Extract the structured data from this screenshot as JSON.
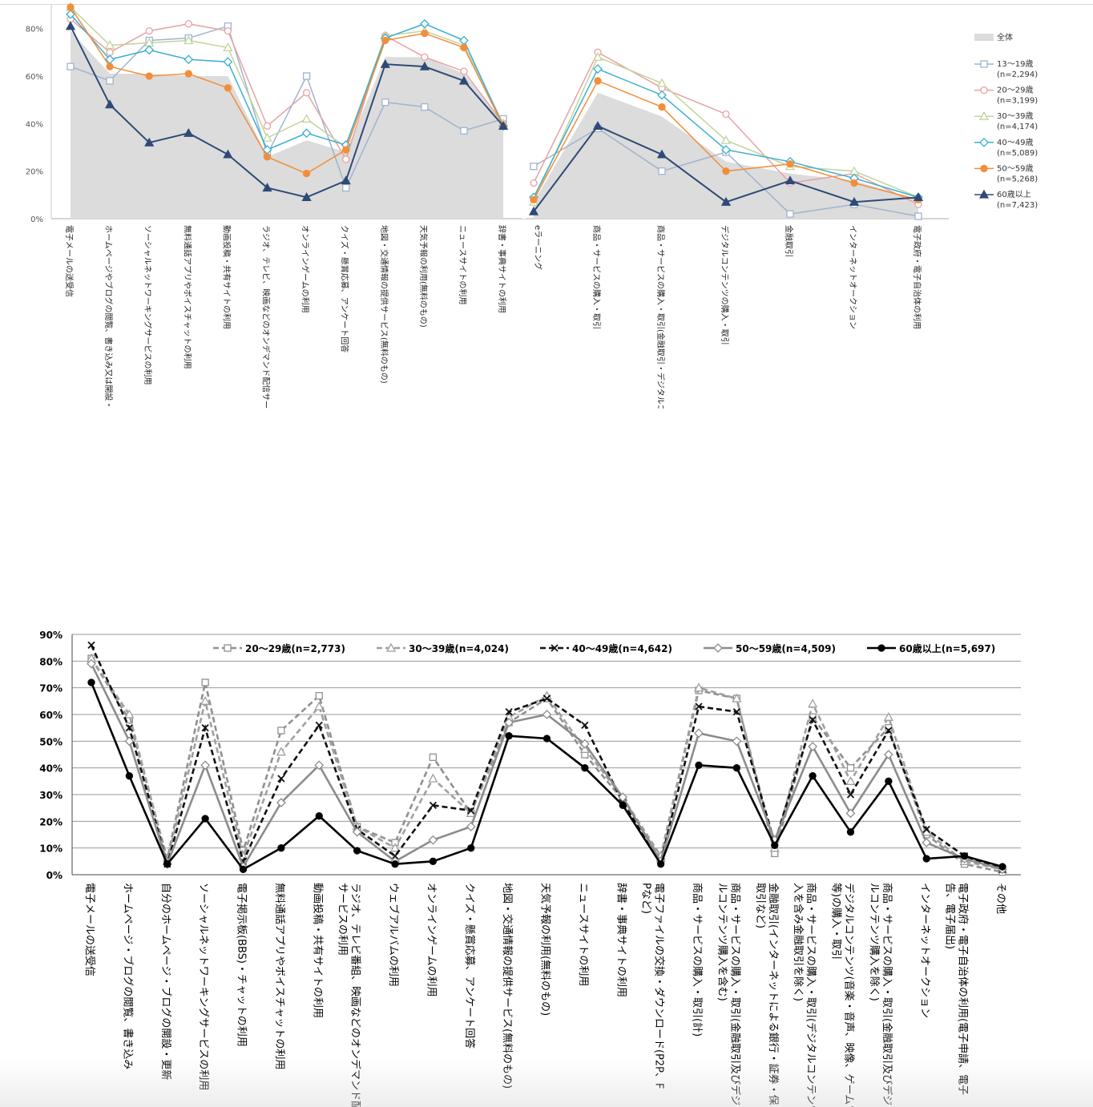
{
  "chart_data": [
    {
      "type": "line",
      "title": "",
      "xlabel": "",
      "ylabel": "",
      "ylim": [
        0,
        90
      ],
      "yticks": [
        "0%",
        "20%",
        "40%",
        "60%",
        "80%"
      ],
      "grid": false,
      "legend_position": "right",
      "categories": [
        "電子メールの送受信",
        "ホームページやブログの閲覧、書き込み又は開設・更新",
        "ソーシャルネットワーキングサービスの利用",
        "無料通話アプリやボイスチャットの利用",
        "動画投稿・共有サイトの利用",
        "ラジオ、テレビ、映画などのオンデマンド配信サービスの利用",
        "オンラインゲームの利用",
        "クイズ・懸賞応募、アンケート回答",
        "地図・交通情報の提供サービス(無料のもの)",
        "天気予報の利用(無料のもの)",
        "ニュースサイトの利用",
        "辞書・事典サイトの利用",
        "eラーニング",
        "商品・サービスの購入・取引",
        "商品・サービスの購入・取引(金融取引・デジタルコンテンツ購入を除く)",
        "デジタルコンテンツの購入・取引",
        "金融取引",
        "インターネットオークション",
        "電子政府・電子自治体の利用"
      ],
      "area": {
        "name": "全体",
        "color": "#dcdcdc",
        "values": [
          79,
          61,
          61,
          60,
          60,
          26,
          33,
          28,
          68,
          68,
          61,
          41,
          7,
          53,
          43,
          24,
          19,
          16,
          8
        ]
      },
      "series": [
        {
          "name": "13〜19歳",
          "n": "(n=2,294)",
          "color": "#9fb3cf",
          "marker": "square",
          "values": [
            64,
            58,
            75,
            76,
            81,
            27,
            60,
            13,
            49,
            47,
            37,
            42,
            22,
            38,
            20,
            28,
            2,
            6,
            1
          ]
        },
        {
          "name": "20〜29歳",
          "n": "(n=3,199)",
          "color": "#e7a2a2",
          "marker": "circle",
          "values": [
            84,
            70,
            79,
            82,
            79,
            39,
            53,
            25,
            77,
            68,
            62,
            40,
            15,
            70,
            55,
            44,
            15,
            19,
            6
          ]
        },
        {
          "name": "30〜39歳",
          "n": "(n=4,174)",
          "color": "#c2d49c",
          "marker": "triangle",
          "values": [
            89,
            73,
            74,
            75,
            72,
            34,
            42,
            30,
            77,
            79,
            73,
            40,
            7,
            68,
            57,
            33,
            22,
            20,
            9
          ]
        },
        {
          "name": "40〜49歳",
          "n": "(n=5,089)",
          "color": "#3aaed2",
          "marker": "diamond",
          "values": [
            86,
            67,
            71,
            67,
            66,
            29,
            36,
            31,
            76,
            82,
            75,
            39,
            9,
            63,
            52,
            29,
            24,
            17,
            9
          ]
        },
        {
          "name": "50〜59歳",
          "n": "(n=5,268)",
          "color": "#f28e3a",
          "marker": "circle-filled",
          "values": [
            89,
            64,
            60,
            61,
            55,
            26,
            19,
            29,
            75,
            78,
            72,
            39,
            8,
            58,
            47,
            20,
            23,
            15,
            8
          ]
        },
        {
          "name": "60歳以上",
          "n": "(n=7,423)",
          "color": "#2e4a76",
          "marker": "triangle-filled",
          "values": [
            81,
            48,
            32,
            36,
            27,
            13,
            9,
            16,
            65,
            64,
            58,
            39,
            3,
            39,
            27,
            7,
            16,
            7,
            9
          ]
        }
      ]
    },
    {
      "type": "line",
      "title": "",
      "xlabel": "",
      "ylabel": "",
      "ylim": [
        0,
        90
      ],
      "yticks": [
        "0%",
        "10%",
        "20%",
        "30%",
        "40%",
        "50%",
        "60%",
        "70%",
        "80%",
        "90%"
      ],
      "grid": true,
      "legend_position": "top",
      "categories": [
        "電子メールの送受信",
        "ホームページ・ブログの閲覧、書き込み",
        "自分のホームページ・ブログの開設・更新",
        "ソーシャルネットワーキングサービスの利用",
        "電子掲示板(BBS)・チャットの利用",
        "無料通話アプリやボイスチャットの利用",
        "動画投稿・共有サイトの利用",
        "ラジオ、テレビ番組、映画などのオンデマンド配",
        "ウェブアルバムの利用",
        "オンラインゲームの利用",
        "クイズ・懸賞応募、アンケート回答",
        "地図・交通情報の提供サービス(無料のもの)",
        "天気予報の利用(無料のもの)",
        "ニュースサイトの利用",
        "辞書・事典サイトの利用",
        "電子ファイルの交換・ダウンロード(P2P、F",
        "商品・サービスの購入・取引(計)",
        "商品・サービスの購入・取引(金融取引及びデジ",
        "金融取引(インターネットによる銀行・証券・保",
        "商品・サービスの購入・取引(デジタルコンテンツ",
        "デジタルコンテンツ(音楽・音声、映像、ゲームソ",
        "商品・サービスの購入・取引(金融取引及びデジ",
        "インターネットオークション",
        "電子政府・電子自治体の利用(電子申請、電子",
        "その他"
      ],
      "category_lines2": [
        "",
        "",
        "",
        "",
        "",
        "",
        "",
        "サービスの利用",
        "",
        "",
        "",
        "",
        "",
        "",
        "",
        "Pなど)",
        "",
        "ルコンテンツ購入を含む)",
        "取引など)",
        "入を含み金融取引を除く)",
        "等)の購入・取引",
        "ルコンテンツ購入を除く)",
        "",
        "告、電子届出)",
        ""
      ],
      "series": [
        {
          "name": "20〜29歳(n=2,773)",
          "color": "#909090",
          "dash": "7,4",
          "marker": "square",
          "values": [
            81,
            58,
            6,
            72,
            9,
            54,
            67,
            18,
            12,
            44,
            23,
            57,
            66,
            45,
            28,
            6,
            69,
            66,
            8,
            59,
            40,
            55,
            15,
            4,
            1
          ]
        },
        {
          "name": "30〜39歳(n=4,024)",
          "color": "#a0a0a0",
          "dash": "7,4",
          "marker": "triangle",
          "values": [
            81,
            60,
            5,
            65,
            7,
            46,
            63,
            18,
            10,
            36,
            23,
            59,
            67,
            47,
            29,
            7,
            70,
            66,
            10,
            64,
            35,
            59,
            16,
            5,
            2
          ]
        },
        {
          "name": "40〜49歳(n=4,642)",
          "color": "#111111",
          "dash": "7,4",
          "marker": "x",
          "values": [
            86,
            55,
            4,
            55,
            5,
            36,
            56,
            17,
            7,
            26,
            24,
            61,
            66,
            56,
            27,
            5,
            63,
            61,
            12,
            58,
            30,
            54,
            17,
            7,
            2
          ]
        },
        {
          "name": "50〜59歳(n=4,509)",
          "color": "#8c8c8c",
          "dash": "",
          "marker": "diamond",
          "values": [
            79,
            50,
            4,
            41,
            3,
            27,
            41,
            16,
            5,
            13,
            18,
            57,
            60,
            49,
            29,
            5,
            53,
            50,
            13,
            48,
            23,
            45,
            12,
            6,
            2
          ]
        },
        {
          "name": "60歳以上(n=5,697)",
          "color": "#000000",
          "dash": "",
          "marker": "circle-filled",
          "values": [
            72,
            37,
            4,
            21,
            2,
            10,
            22,
            9,
            4,
            5,
            10,
            52,
            51,
            40,
            26,
            4,
            41,
            40,
            11,
            37,
            16,
            35,
            6,
            7,
            3
          ]
        }
      ]
    }
  ]
}
